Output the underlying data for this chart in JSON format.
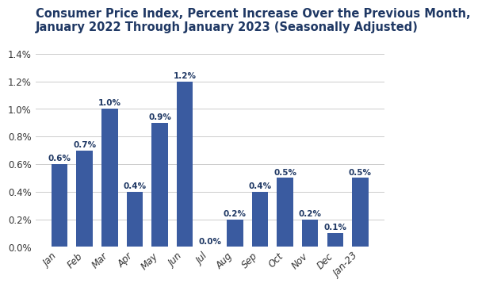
{
  "categories": [
    "Jan",
    "Feb",
    "Mar",
    "Apr",
    "May",
    "Jun",
    "Jul",
    "Aug",
    "Sep",
    "Oct",
    "Nov",
    "Dec",
    "Jan-23"
  ],
  "values": [
    0.6,
    0.7,
    1.0,
    0.4,
    0.9,
    1.2,
    0.0,
    0.2,
    0.4,
    0.5,
    0.2,
    0.1,
    0.5
  ],
  "bar_color": "#3a5ba0",
  "title_line1": "Consumer Price Index, Percent Increase Over the Previous Month,",
  "title_line2": "January 2022 Through January 2023 (Seasonally Adjusted)",
  "title_color": "#1f3864",
  "ylim": [
    0,
    1.5
  ],
  "yticks": [
    0.0,
    0.2,
    0.4,
    0.6,
    0.8,
    1.0,
    1.2,
    1.4
  ],
  "bar_label_fontsize": 7.5,
  "bar_label_color": "#1f3864",
  "title_fontsize": 10.5,
  "tick_fontsize": 8.5,
  "background_color": "#ffffff",
  "grid_color": "#cccccc"
}
